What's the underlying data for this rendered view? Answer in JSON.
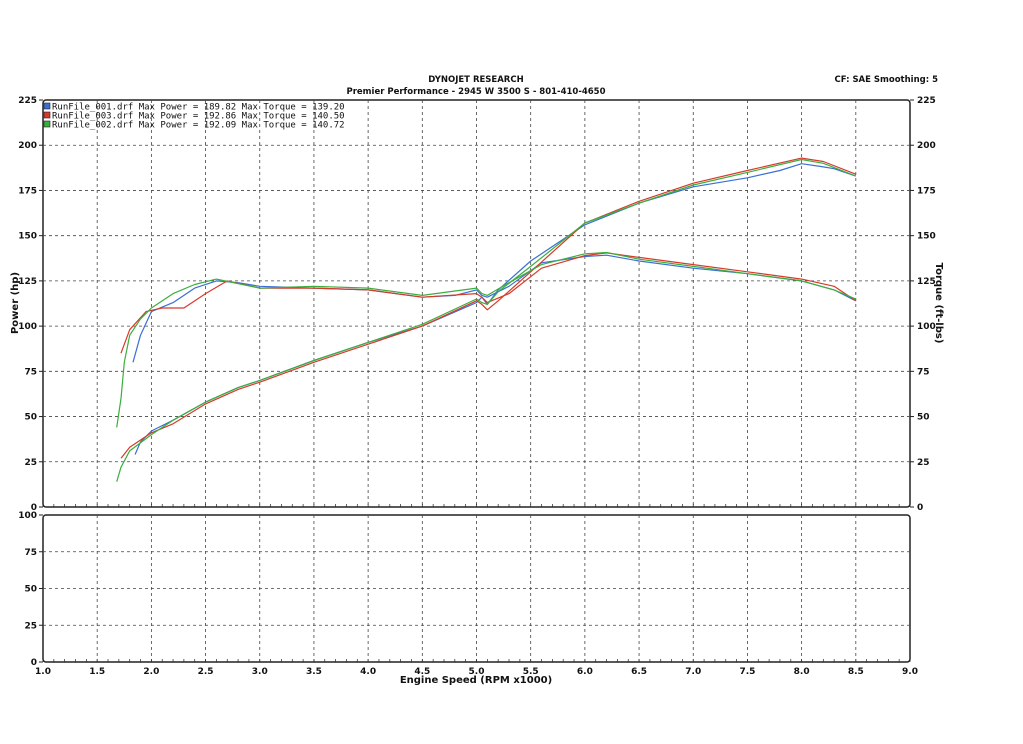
{
  "header": {
    "title": "DYNOJET RESEARCH",
    "subtitle": "Premier Performance - 2945 W 3500 S - 801-410-4650",
    "correction": "CF: SAE  Smoothing: 5"
  },
  "chart_data": [
    {
      "type": "line",
      "xlabel": "Engine Speed (RPM x1000)",
      "ylabel": "Power (hp)",
      "ylabel_right": "Torque (ft-lbs)",
      "xlim": [
        1.0,
        9.0
      ],
      "ylim": [
        0,
        225
      ],
      "ylim_right": [
        0,
        225
      ],
      "x_ticks": [
        "1.0",
        "1.5",
        "2.0",
        "2.5",
        "3.0",
        "3.5",
        "4.0",
        "4.5",
        "5.0",
        "5.5",
        "6.0",
        "6.5",
        "7.0",
        "7.5",
        "8.0",
        "8.5",
        "9.0"
      ],
      "y_ticks": [
        "0",
        "25",
        "50",
        "75",
        "100",
        "125",
        "150",
        "175",
        "200",
        "225"
      ],
      "y_ticks_right": [
        "0",
        "25",
        "50",
        "75",
        "100",
        "125",
        "150",
        "175",
        "200",
        "225"
      ],
      "grid": true,
      "legend_position": "top-left",
      "series": [
        {
          "name": "RunFile_001.drf",
          "legend_text": "RunFile_001.drf Max Power = 189.82   Max Torque = 139.20",
          "color": "#3a6fd6",
          "power": [
            [
              1.85,
              29
            ],
            [
              1.9,
              36
            ],
            [
              2.0,
              42
            ],
            [
              2.2,
              48
            ],
            [
              2.5,
              58
            ],
            [
              2.8,
              66
            ],
            [
              3.0,
              70
            ],
            [
              3.5,
              81
            ],
            [
              4.0,
              91
            ],
            [
              4.5,
              100
            ],
            [
              5.0,
              113
            ],
            [
              5.05,
              116
            ],
            [
              5.1,
              112
            ],
            [
              5.2,
              120
            ],
            [
              5.5,
              136
            ],
            [
              6.0,
              156
            ],
            [
              6.5,
              168
            ],
            [
              7.0,
              177
            ],
            [
              7.5,
              182
            ],
            [
              7.8,
              186
            ],
            [
              8.0,
              189.8
            ],
            [
              8.2,
              188
            ],
            [
              8.3,
              187
            ],
            [
              8.5,
              183
            ]
          ],
          "torque": [
            [
              1.83,
              80
            ],
            [
              1.9,
              95
            ],
            [
              2.0,
              108
            ],
            [
              2.2,
              113
            ],
            [
              2.4,
              121
            ],
            [
              2.6,
              125
            ],
            [
              2.8,
              124
            ],
            [
              3.0,
              122
            ],
            [
              3.5,
              121
            ],
            [
              4.0,
              120
            ],
            [
              4.5,
              116
            ],
            [
              4.8,
              117
            ],
            [
              5.0,
              120
            ],
            [
              5.05,
              117
            ],
            [
              5.1,
              116
            ],
            [
              5.3,
              122
            ],
            [
              5.6,
              135
            ],
            [
              6.0,
              138.5
            ],
            [
              6.2,
              139.2
            ],
            [
              6.5,
              136
            ],
            [
              7.0,
              132
            ],
            [
              7.5,
              129
            ],
            [
              8.0,
              125
            ],
            [
              8.3,
              120
            ],
            [
              8.5,
              114
            ]
          ]
        },
        {
          "name": "RunFile_003.drf",
          "legend_text": "RunFile_003.drf Max Power = 192.86   Max Torque = 140.50",
          "color": "#d63a2a",
          "power": [
            [
              1.72,
              27
            ],
            [
              1.8,
              33
            ],
            [
              2.0,
              41
            ],
            [
              2.2,
              46
            ],
            [
              2.5,
              57
            ],
            [
              2.8,
              65
            ],
            [
              3.0,
              69
            ],
            [
              3.5,
              80
            ],
            [
              4.0,
              90
            ],
            [
              4.5,
              100
            ],
            [
              5.0,
              114
            ],
            [
              5.05,
              112
            ],
            [
              5.1,
              109
            ],
            [
              5.2,
              114
            ],
            [
              5.5,
              130
            ],
            [
              6.0,
              157
            ],
            [
              6.5,
              169
            ],
            [
              7.0,
              179
            ],
            [
              7.5,
              186
            ],
            [
              8.0,
              192.9
            ],
            [
              8.2,
              191
            ],
            [
              8.5,
              184
            ]
          ],
          "torque": [
            [
              1.72,
              85
            ],
            [
              1.8,
              98
            ],
            [
              1.95,
              108
            ],
            [
              2.1,
              110
            ],
            [
              2.3,
              110
            ],
            [
              2.5,
              118
            ],
            [
              2.7,
              125
            ],
            [
              3.0,
              121
            ],
            [
              3.5,
              121
            ],
            [
              4.0,
              120
            ],
            [
              4.5,
              116
            ],
            [
              5.0,
              118
            ],
            [
              5.05,
              116
            ],
            [
              5.1,
              113
            ],
            [
              5.3,
              118
            ],
            [
              5.6,
              132
            ],
            [
              6.0,
              139
            ],
            [
              6.2,
              140.5
            ],
            [
              6.5,
              138
            ],
            [
              7.0,
              134
            ],
            [
              7.5,
              130
            ],
            [
              8.0,
              126
            ],
            [
              8.3,
              122
            ],
            [
              8.5,
              114
            ]
          ]
        },
        {
          "name": "RunFile_002.drf",
          "legend_text": "RunFile_002.drf Max Power = 192.09   Max Torque = 140.72",
          "color": "#3cae3c",
          "power": [
            [
              1.68,
              14
            ],
            [
              1.72,
              22
            ],
            [
              1.8,
              31
            ],
            [
              2.0,
              40
            ],
            [
              2.2,
              48
            ],
            [
              2.5,
              58
            ],
            [
              2.8,
              66
            ],
            [
              3.0,
              70
            ],
            [
              3.5,
              81
            ],
            [
              4.0,
              91
            ],
            [
              4.5,
              101
            ],
            [
              5.0,
              115
            ],
            [
              5.05,
              113
            ],
            [
              5.1,
              112
            ],
            [
              5.2,
              119
            ],
            [
              5.5,
              133
            ],
            [
              6.0,
              157
            ],
            [
              6.5,
              168
            ],
            [
              7.0,
              178
            ],
            [
              7.5,
              185
            ],
            [
              8.0,
              192.1
            ],
            [
              8.2,
              190
            ],
            [
              8.5,
              183
            ]
          ],
          "torque": [
            [
              1.68,
              44
            ],
            [
              1.72,
              60
            ],
            [
              1.75,
              80
            ],
            [
              1.8,
              95
            ],
            [
              1.9,
              104
            ],
            [
              2.0,
              110
            ],
            [
              2.2,
              118
            ],
            [
              2.4,
              123
            ],
            [
              2.6,
              126
            ],
            [
              3.0,
              121
            ],
            [
              3.5,
              122
            ],
            [
              4.0,
              121
            ],
            [
              4.5,
              117
            ],
            [
              5.0,
              121
            ],
            [
              5.05,
              118
            ],
            [
              5.1,
              117
            ],
            [
              5.3,
              124
            ],
            [
              5.6,
              134
            ],
            [
              6.0,
              140
            ],
            [
              6.2,
              140.7
            ],
            [
              6.5,
              137
            ],
            [
              7.0,
              133
            ],
            [
              7.5,
              129
            ],
            [
              8.0,
              125
            ],
            [
              8.3,
              120
            ],
            [
              8.5,
              115
            ]
          ]
        }
      ]
    },
    {
      "type": "line",
      "xlabel": "Engine Speed (RPM x1000)",
      "xlim": [
        1.0,
        9.0
      ],
      "ylim": [
        0,
        100
      ],
      "x_ticks": [
        "1.0",
        "1.5",
        "2.0",
        "2.5",
        "3.0",
        "3.5",
        "4.0",
        "4.5",
        "5.0",
        "5.5",
        "6.0",
        "6.5",
        "7.0",
        "7.5",
        "8.0",
        "8.5",
        "9.0"
      ],
      "y_ticks": [
        "0",
        "25",
        "50",
        "75",
        "100"
      ],
      "grid": true,
      "series": []
    }
  ]
}
